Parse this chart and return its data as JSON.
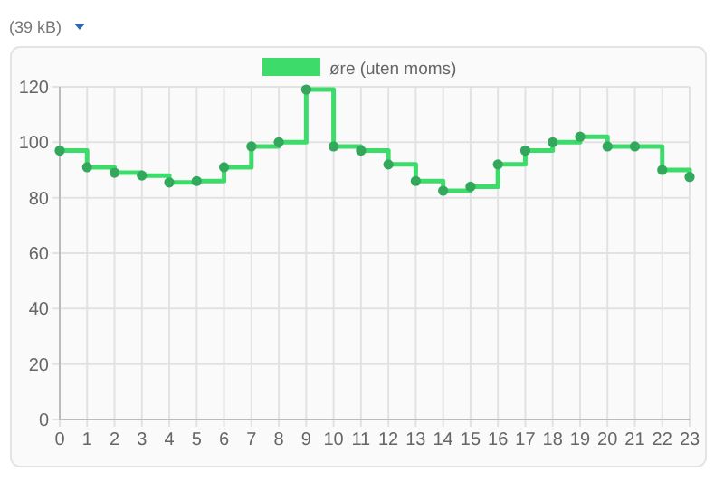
{
  "chart_data": {
    "type": "step",
    "annotations": [
      "(39 kB)"
    ],
    "x": [
      0,
      1,
      2,
      3,
      4,
      5,
      6,
      7,
      8,
      9,
      10,
      11,
      12,
      13,
      14,
      15,
      16,
      17,
      18,
      19,
      20,
      21,
      22,
      23
    ],
    "series": [
      {
        "name": "øre (uten moms)",
        "color": "#3ddc6a",
        "values": [
          97,
          91,
          89,
          88,
          85.5,
          86,
          91,
          98.5,
          100,
          119,
          98.5,
          97,
          92,
          86,
          82.5,
          84,
          92,
          97,
          100,
          102,
          98.5,
          98.5,
          90,
          87.5
        ]
      }
    ],
    "xlim": [
      0,
      23
    ],
    "xticks": [
      0,
      1,
      2,
      3,
      4,
      5,
      6,
      7,
      8,
      9,
      10,
      11,
      12,
      13,
      14,
      15,
      16,
      17,
      18,
      19,
      20,
      21,
      22,
      23
    ],
    "ylim": [
      0,
      120
    ],
    "yticks": [
      0,
      20,
      40,
      60,
      80,
      100,
      120
    ],
    "grid": true,
    "legend": "top",
    "marker": "circle",
    "line_style": "solid"
  }
}
